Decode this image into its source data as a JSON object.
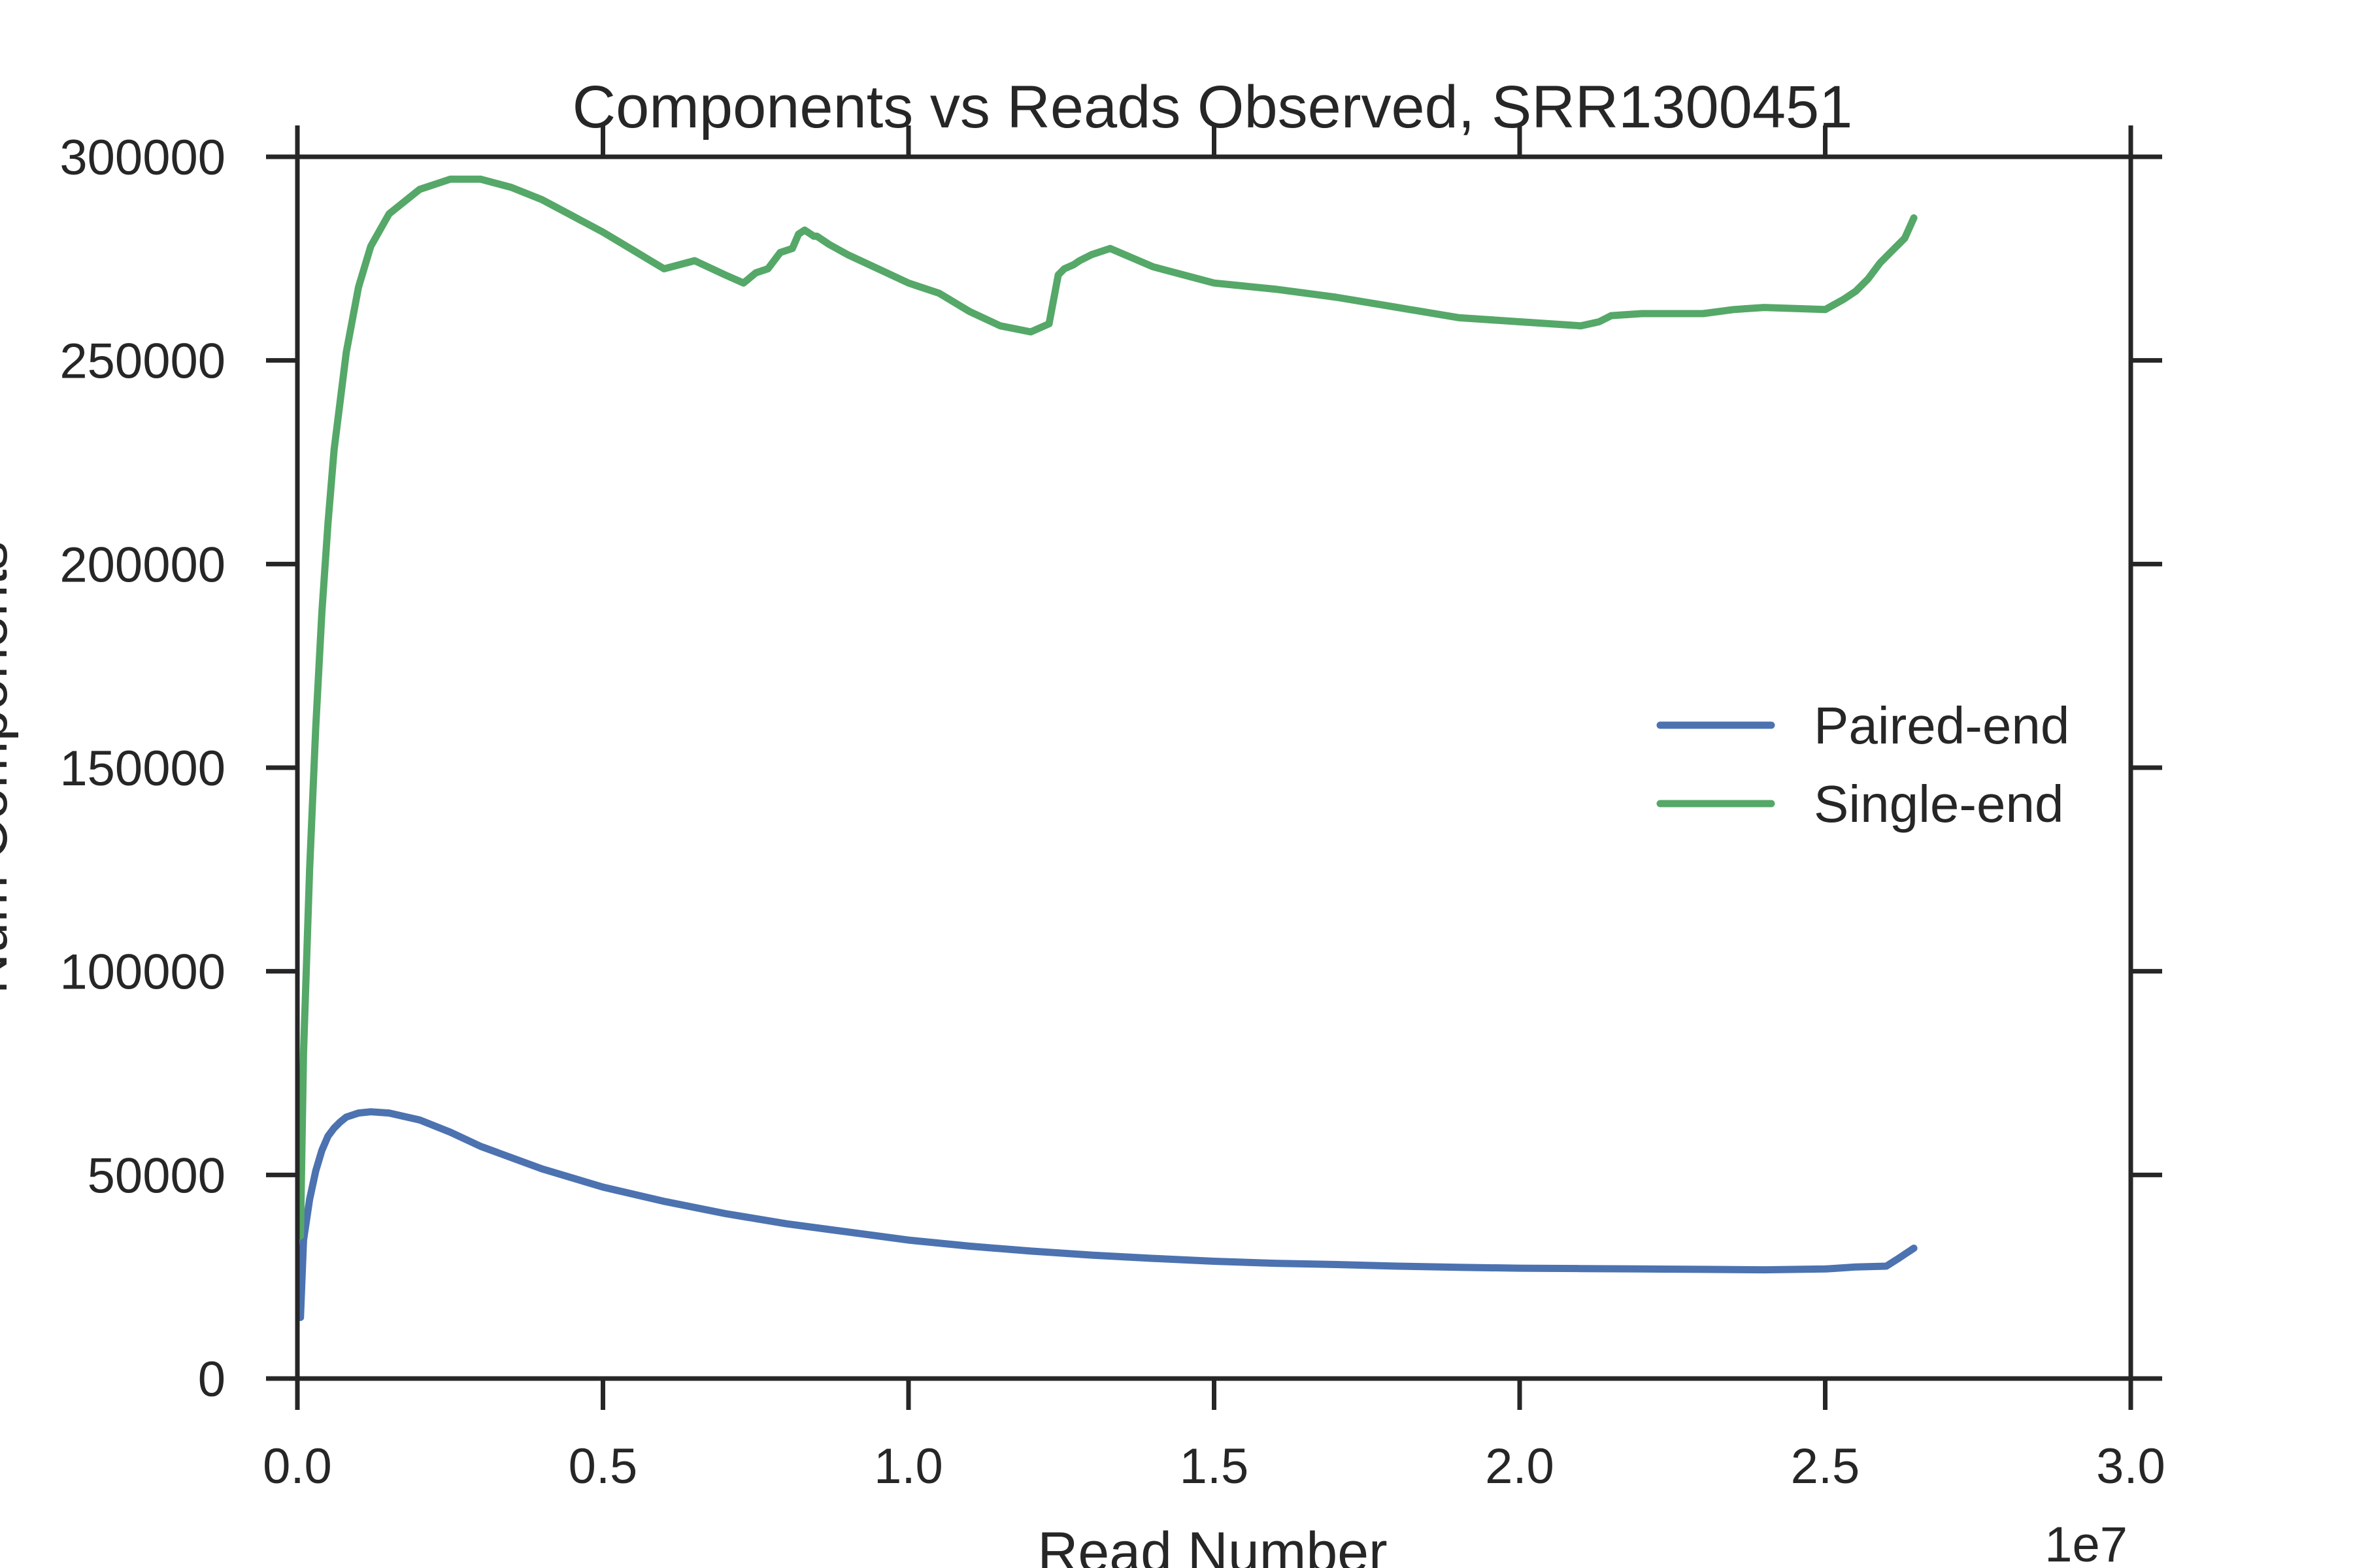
{
  "chart_data": {
    "type": "line",
    "title": "Components vs Reads Observed, SRR1300451",
    "xlabel": "Read Number",
    "ylabel": "Num Components",
    "x_offset_label": "1e7",
    "xlim": [
      0,
      30000000
    ],
    "ylim": [
      0,
      300000
    ],
    "x_ticks": [
      0,
      5000000,
      10000000,
      15000000,
      20000000,
      25000000,
      30000000
    ],
    "x_tick_labels": [
      "0.0",
      "0.5",
      "1.0",
      "1.5",
      "2.0",
      "2.5",
      "3.0"
    ],
    "y_ticks": [
      0,
      50000,
      100000,
      150000,
      200000,
      250000,
      300000
    ],
    "y_tick_labels": [
      "0",
      "50000",
      "100000",
      "150000",
      "200000",
      "250000",
      "300000"
    ],
    "grid": false,
    "legend_position": "center-right",
    "series": [
      {
        "name": "Paired-end",
        "color": "#4c72b0",
        "x": [
          50000,
          100000,
          200000,
          300000,
          400000,
          500000,
          600000,
          700000,
          800000,
          1000000,
          1200000,
          1500000,
          2000000,
          2500000,
          3000000,
          4000000,
          5000000,
          6000000,
          7000000,
          8000000,
          9000000,
          10000000,
          11000000,
          12000000,
          13000000,
          14000000,
          15000000,
          16000000,
          17000000,
          18000000,
          19000000,
          20000000,
          21000000,
          22000000,
          23000000,
          24000000,
          25000000,
          25300000,
          25500000,
          26000000,
          26200000,
          26450000
        ],
        "y": [
          15000,
          34000,
          44000,
          51000,
          56000,
          59500,
          61500,
          63000,
          64200,
          65200,
          65500,
          65200,
          63500,
          60500,
          57000,
          51500,
          47000,
          43500,
          40500,
          38000,
          36000,
          34000,
          32500,
          31300,
          30300,
          29500,
          28800,
          28300,
          28000,
          27600,
          27300,
          27100,
          27000,
          26900,
          26800,
          26700,
          26900,
          27200,
          27400,
          27600,
          29500,
          32000
        ]
      },
      {
        "name": "Single-end",
        "color": "#55a868",
        "x": [
          50000,
          100000,
          200000,
          300000,
          400000,
          500000,
          600000,
          800000,
          1000000,
          1200000,
          1500000,
          2000000,
          2500000,
          3000000,
          3500000,
          4000000,
          4500000,
          5000000,
          5500000,
          6000000,
          6500000,
          7000000,
          7300000,
          7500000,
          7700000,
          7900000,
          8100000,
          8200000,
          8300000,
          8450000,
          8500000,
          8700000,
          9000000,
          9500000,
          10000000,
          10500000,
          11000000,
          11500000,
          12000000,
          12300000,
          12450000,
          12550000,
          12700000,
          12800000,
          13000000,
          13300000,
          14000000,
          15000000,
          16000000,
          17000000,
          18000000,
          19000000,
          20000000,
          21000000,
          21300000,
          21500000,
          22000000,
          23000000,
          23500000,
          24000000,
          25000000,
          25300000,
          25500000,
          25700000,
          25900000,
          26100000,
          26300000,
          26450000
        ],
        "y": [
          35000,
          80000,
          125000,
          160000,
          188000,
          210000,
          228000,
          252000,
          268000,
          278000,
          286000,
          292000,
          294500,
          294500,
          292500,
          289500,
          285500,
          281500,
          277000,
          272500,
          274500,
          271000,
          269000,
          271500,
          272500,
          276500,
          277500,
          281000,
          282000,
          280500,
          280500,
          278500,
          276000,
          272500,
          269000,
          266500,
          262000,
          258500,
          257000,
          259000,
          271000,
          272500,
          273500,
          274500,
          276000,
          277500,
          273000,
          269000,
          267500,
          265500,
          263000,
          260500,
          259500,
          258500,
          259500,
          261000,
          261500,
          261500,
          262500,
          263000,
          262500,
          265000,
          267000,
          270000,
          274000,
          277000,
          280000,
          285000
        ]
      }
    ]
  }
}
